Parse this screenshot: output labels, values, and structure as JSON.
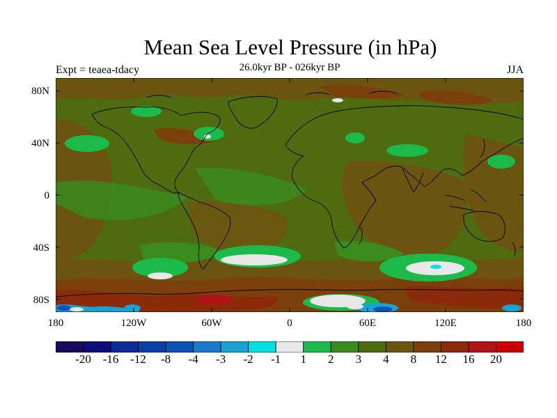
{
  "title": "Mean Sea Level Pressure (in hPa)",
  "experiment": "Expt = teaea-tdacy",
  "period": "26.0kyr BP - 026kyr BP",
  "season": "JJA",
  "lat_labels": [
    "80N",
    "40N",
    "0",
    "40S",
    "80S"
  ],
  "lon_labels": [
    "180",
    "120W",
    "60W",
    "0",
    "60E",
    "120E",
    "180"
  ],
  "colorbar": {
    "colors": [
      "#1a0a5e",
      "#0d0d7a",
      "#0b2a9a",
      "#0a3fa8",
      "#0a52b8",
      "#1a7acb",
      "#19a3d3",
      "#00e0e0",
      "#e8e8e8",
      "#1cba4a",
      "#3a8a1e",
      "#4f6b10",
      "#6b5410",
      "#7a3f0a",
      "#8a2a08",
      "#b01414",
      "#cc0000"
    ],
    "labels": [
      "-20",
      "-16",
      "-12",
      "-8",
      "-4",
      "-3",
      "-2",
      "-1",
      "1",
      "2",
      "3",
      "4",
      "8",
      "12",
      "16",
      "20"
    ]
  },
  "palette": {
    "background": "#4f6b10",
    "brown": "#6b5410",
    "dark_brown": "#7a3f0a",
    "red_brown": "#8a2a08",
    "red": "#b01414",
    "mid_green": "#3a8a1e",
    "bright_green": "#1cba4a",
    "light_gray": "#e8e8e8",
    "cyan": "#00e0e0",
    "light_blue": "#19a3d3",
    "blue": "#0a52b8"
  }
}
